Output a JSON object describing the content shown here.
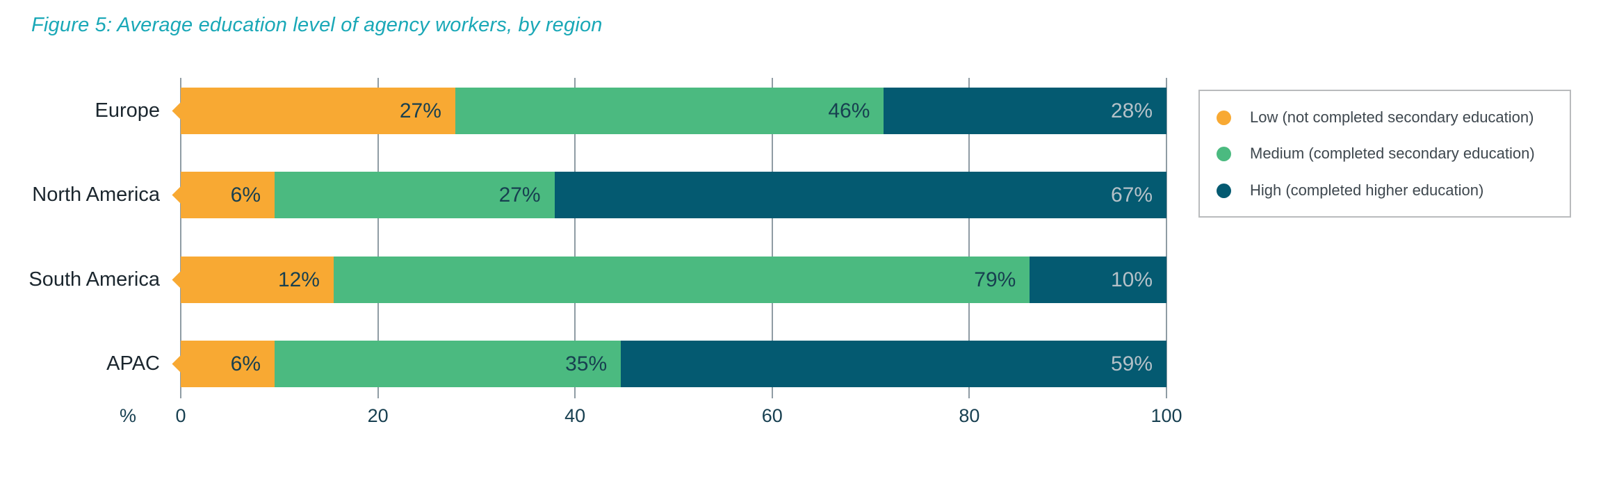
{
  "figure": {
    "title": "Figure 5: Average education level of agency workers, by region"
  },
  "chart_data": {
    "type": "bar",
    "orientation": "horizontal",
    "stacked": true,
    "title": "Figure 5: Average education level of agency workers, by region",
    "categories": [
      "Europe",
      "North America",
      "South America",
      "APAC"
    ],
    "series": [
      {
        "name": "Low (not completed secondary education)",
        "values": [
          27,
          6,
          12,
          6
        ],
        "color": "#F8A933",
        "label_color": "#173F50"
      },
      {
        "name": "Medium (completed secondary education)",
        "values": [
          46,
          27,
          79,
          35
        ],
        "color": "#4BBA80",
        "label_color": "#173F50"
      },
      {
        "name": "High (completed higher education)",
        "values": [
          28,
          67,
          10,
          59
        ],
        "color": "#045A71",
        "label_color": "#B5C1C8"
      }
    ],
    "value_suffix": "%",
    "xlabel": "%",
    "x_ticks": [
      0,
      20,
      40,
      60,
      80,
      100
    ],
    "xlim": [
      0,
      100
    ],
    "grid": true,
    "legend_position": "right"
  },
  "colors": {
    "title_text": "#1AA8B7",
    "axis_text": "#173F50",
    "category_text": "#1B262E",
    "gridline": "#8F9CA4",
    "legend_border": "#B9BBBD",
    "legend_text": "#3E474E",
    "background": "#FFFFFF"
  }
}
